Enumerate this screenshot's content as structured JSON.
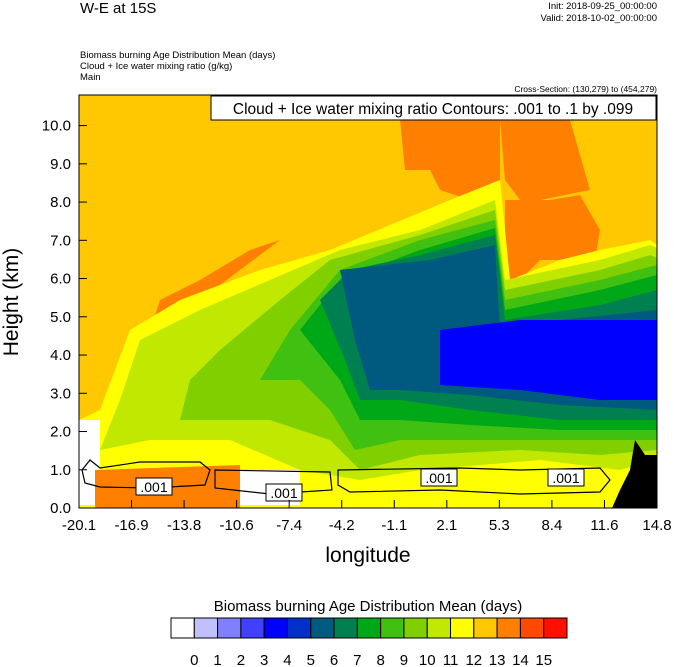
{
  "header": {
    "title": "W-E at 15S",
    "init": "Init: 2018-09-25_00:00:00",
    "valid": "Valid: 2018-10-02_00:00:00",
    "subtitles": [
      "Biomass burning Age Distribution Mean   (days)",
      "Cloud + Ice water mixing ratio   (g/kg)",
      "Main"
    ],
    "cross_section": "Cross-Section: (130,279) to (454,279)"
  },
  "chart_data": {
    "type": "heatmap",
    "title": "W-E at 15S",
    "annotation": "Cloud + Ice water mixing ratio Contours: .001 to .1 by .099",
    "xlabel": "longitude",
    "ylabel": "Height (km)",
    "x_ticks": [
      "-20.1",
      "-16.9",
      "-13.8",
      "-10.6",
      "-7.4",
      "-4.2",
      "-1.1",
      "2.1",
      "5.3",
      "8.4",
      "11.6",
      "14.8"
    ],
    "xlim": [
      -20.1,
      14.8
    ],
    "y_ticks": [
      "0.0",
      "1.0",
      "2.0",
      "3.0",
      "4.0",
      "5.0",
      "6.0",
      "7.0",
      "8.0",
      "9.0",
      "10.0"
    ],
    "ylim": [
      0,
      10.8
    ],
    "contour_labels": [
      ".001",
      ".001",
      ".001",
      ".001"
    ],
    "colorbar": {
      "title": "Biomass burning Age Distribution Mean  (days)",
      "labels": [
        "0",
        "1",
        "2",
        "3",
        "4",
        "5",
        "6",
        "7",
        "8",
        "9",
        "10",
        "11",
        "12",
        "13",
        "14",
        "15"
      ],
      "colors": [
        "#fefefe",
        "#c0c0ff",
        "#8080ff",
        "#4040ff",
        "#0000ff",
        "#0030c8",
        "#005a80",
        "#008050",
        "#00a818",
        "#40c010",
        "#80d000",
        "#c0e800",
        "#ffff00",
        "#ffc800",
        "#ff8000",
        "#ff4800",
        "#ff1000"
      ]
    }
  }
}
